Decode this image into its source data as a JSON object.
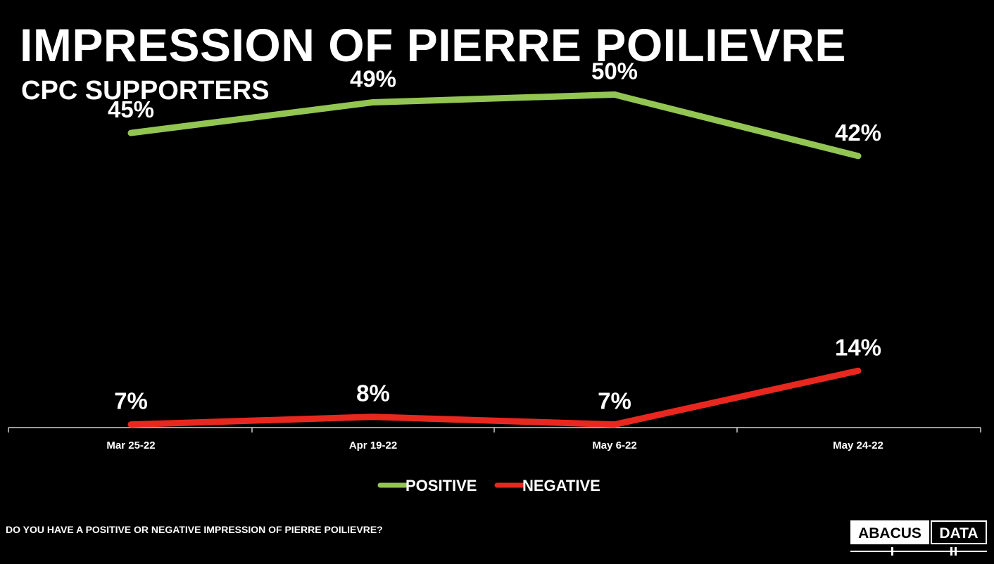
{
  "title": "IMPRESSION OF PIERRE POILIEVRE",
  "subtitle": "CPC SUPPORTERS",
  "question": "DO YOU HAVE A POSITIVE OR NEGATIVE IMPRESSION OF PIERRE POILIEVRE?",
  "logo": {
    "left": "ABACUS",
    "right": "DATA"
  },
  "chart_data": {
    "type": "line",
    "categories": [
      "Mar 25-22",
      "Apr 19-22",
      "May 6-22",
      "May 24-22"
    ],
    "ylim": [
      0,
      55
    ],
    "grid": false,
    "legend_position": "bottom-center",
    "series": [
      {
        "name": "POSITIVE",
        "values": [
          45,
          49,
          50,
          42
        ],
        "labels": [
          "45%",
          "49%",
          "50%",
          "42%"
        ],
        "color": "#93c553"
      },
      {
        "name": "NEGATIVE",
        "values": [
          7,
          8,
          7,
          14
        ],
        "labels": [
          "7%",
          "8%",
          "7%",
          "14%"
        ],
        "color": "#e8281f"
      }
    ]
  }
}
